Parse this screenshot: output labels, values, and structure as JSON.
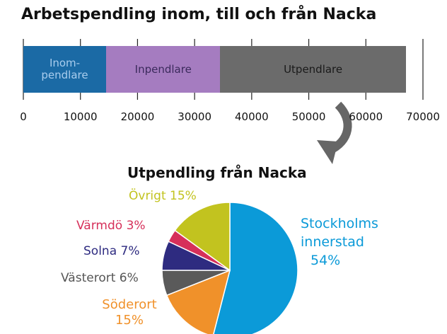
{
  "chart_data": [
    {
      "type": "stacked-bar",
      "title": "Arbetspendling inom, till och från Nacka",
      "series": [
        {
          "name": "Inom-pendlare",
          "color": "#1b6aa5",
          "values": [
            14500
          ]
        },
        {
          "name": "Inpendlare",
          "color": "#a57cc0",
          "values": [
            20000
          ]
        },
        {
          "name": "Utpendlare",
          "color": "#6b6b6b",
          "values": [
            32500
          ]
        }
      ],
      "xlim": [
        0,
        70000
      ],
      "xticks": [
        0,
        10000,
        20000,
        30000,
        40000,
        50000,
        60000,
        70000
      ]
    },
    {
      "type": "pie",
      "title": "Utpendling från Nacka",
      "categories": [
        "Stockholms innerstad",
        "Söderort",
        "Västerort",
        "Solna",
        "Värmdö",
        "Övrigt"
      ],
      "values": [
        54,
        15,
        6,
        7,
        3,
        15
      ],
      "value_labels": [
        "54%",
        "15%",
        "6%",
        "7%",
        "3%",
        "15%"
      ],
      "colors": [
        "#0b9ad8",
        "#f0912a",
        "#5a5a5a",
        "#2e2b80",
        "#d6305a",
        "#c2c31f"
      ]
    }
  ]
}
